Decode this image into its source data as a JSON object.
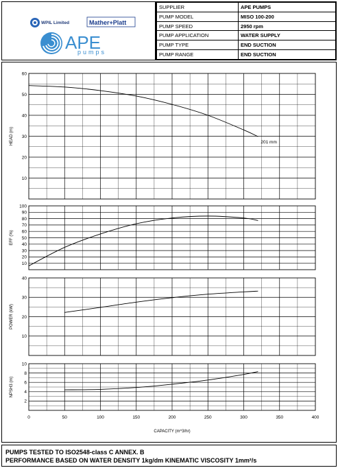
{
  "logos": {
    "wpil": "WPIL Limited",
    "mather_platt": "Mather+Platt",
    "ape": "APE",
    "pumps": "pumps"
  },
  "info_rows": [
    {
      "label": "SUPPLIER",
      "value": "APE PUMPS"
    },
    {
      "label": "PUMP MODEL",
      "value": "MISO 100-200"
    },
    {
      "label": "PUMP SPEED",
      "value": "2950 rpm"
    },
    {
      "label": "PUMP APPLICATION",
      "value": "WATER SUPPLY"
    },
    {
      "label": "PUMP TYPE",
      "value": "END SUCTION"
    },
    {
      "label": "PUMP RANGE",
      "value": "END SUCTION"
    }
  ],
  "footer": {
    "line1": "PUMPS TESTED TO ISO2548-class C ANNEX. B",
    "line2": "PERFORMANCE BASED ON WATER DENSITY 1kg/dm  KINEMATIC VISCOSITY 1mm²/s"
  },
  "colors": {
    "line": "#000000",
    "grid": "#000000",
    "background": "#ffffff"
  },
  "chart_data": [
    {
      "type": "line",
      "ylabel": "HEAD (m)",
      "ylim": [
        0,
        60
      ],
      "yticks": [
        10,
        20,
        30,
        40,
        50,
        60
      ],
      "xlim": [
        0,
        400
      ],
      "grid": true,
      "series": [
        {
          "name": "201 mm",
          "x": [
            0,
            50,
            100,
            150,
            200,
            250,
            300,
            320
          ],
          "y": [
            54.2,
            53.5,
            51.8,
            49.2,
            45.2,
            40.0,
            33.0,
            29.8
          ]
        }
      ],
      "annotations": [
        {
          "text": "201 mm",
          "x": 320,
          "y": 29.8
        }
      ]
    },
    {
      "type": "line",
      "ylabel": "EFF (%)",
      "ylim": [
        0,
        100
      ],
      "yticks": [
        10,
        20,
        30,
        40,
        50,
        60,
        70,
        80,
        90,
        100
      ],
      "xlim": [
        0,
        400
      ],
      "grid": true,
      "series": [
        {
          "x": [
            0,
            50,
            100,
            150,
            200,
            250,
            300,
            320
          ],
          "y": [
            6,
            35,
            56,
            72,
            81,
            84,
            81,
            77
          ]
        }
      ]
    },
    {
      "type": "line",
      "ylabel": "POWER (kW)",
      "ylim": [
        0,
        40
      ],
      "yticks": [
        10,
        20,
        30,
        40
      ],
      "xlim": [
        0,
        400
      ],
      "grid": true,
      "series": [
        {
          "x": [
            50,
            100,
            150,
            200,
            250,
            300,
            320
          ],
          "y": [
            22.2,
            24.8,
            27.5,
            29.8,
            31.6,
            32.8,
            33.2
          ]
        }
      ]
    },
    {
      "type": "line",
      "ylabel": "NPSH3 (m)",
      "xlabel": "CAPACITY (m^3/hr)",
      "ylim": [
        0,
        10
      ],
      "yticks": [
        2,
        4,
        6,
        8,
        10
      ],
      "xlim": [
        0,
        400
      ],
      "xticks": [
        0,
        50,
        100,
        150,
        200,
        250,
        300,
        350,
        400
      ],
      "grid": true,
      "series": [
        {
          "x": [
            50,
            100,
            150,
            200,
            250,
            300,
            320
          ],
          "y": [
            4.4,
            4.5,
            4.9,
            5.6,
            6.5,
            7.7,
            8.3
          ]
        }
      ]
    }
  ]
}
